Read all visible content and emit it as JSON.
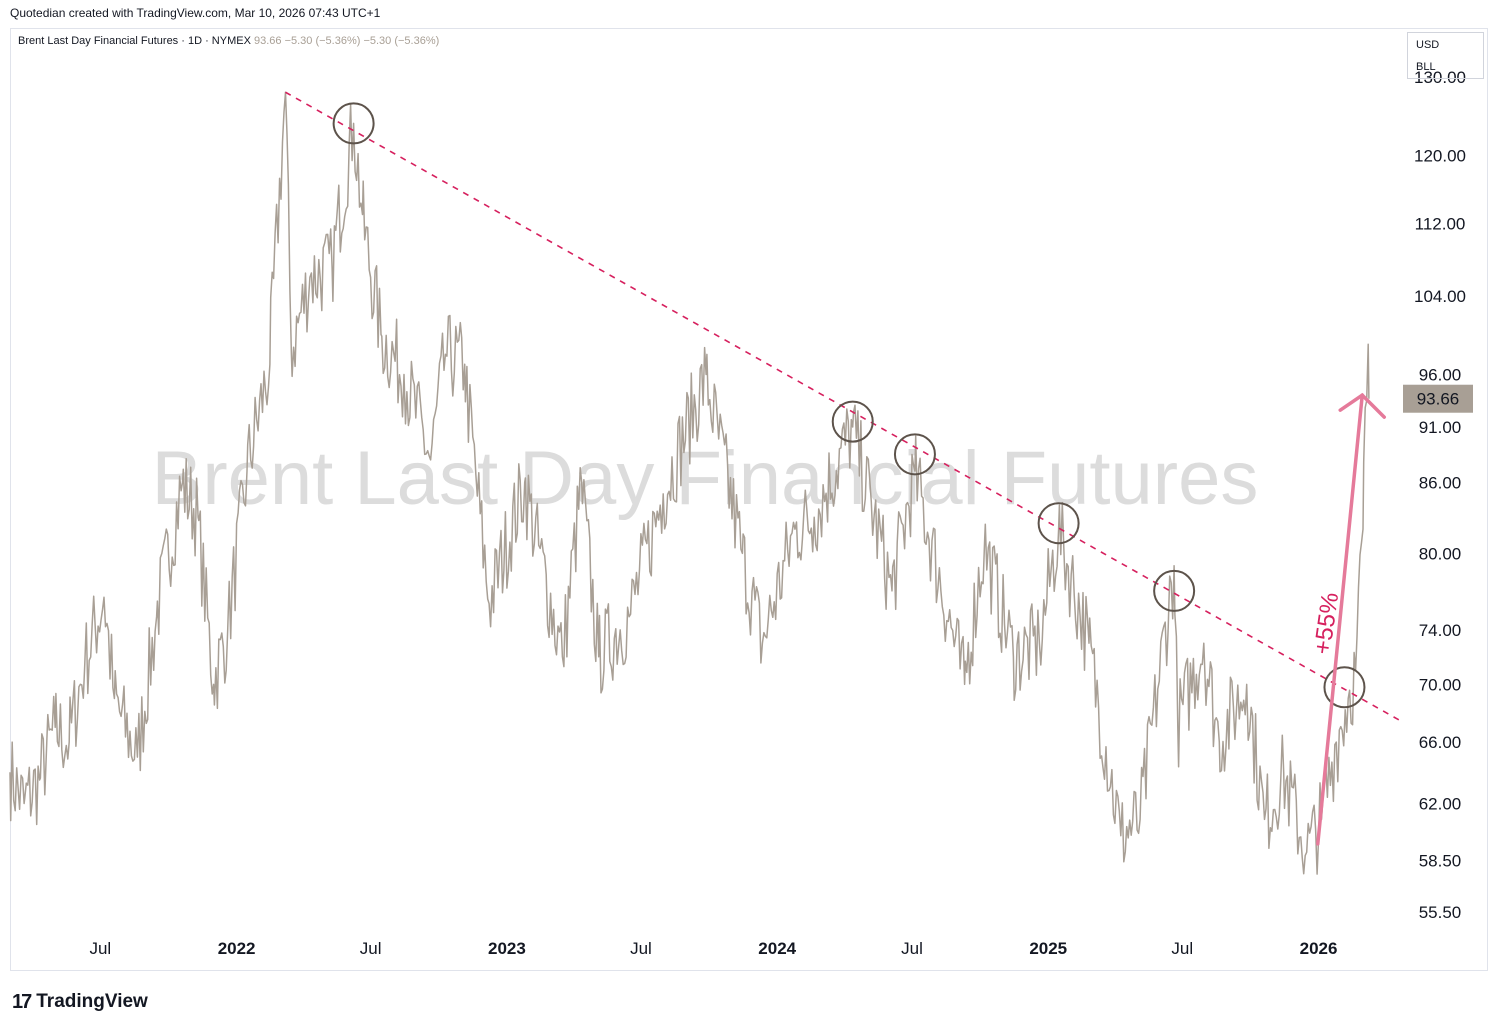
{
  "header": {
    "caption": "Quotedian created with TradingView.com, Mar 10, 2026 07:43 UTC+1"
  },
  "symbol": {
    "name": "Brent Last Day Financial Futures · 1D · NYMEX",
    "quote": "93.66 −5.30 (−5.36%) −5.30 (−5.36%)"
  },
  "units": {
    "currency": "USD",
    "unit": "BLL"
  },
  "watermark": "Brent Last Day Financial Futures",
  "footer": {
    "logo_mark": "17",
    "logo_text": "TradingView"
  },
  "colors": {
    "price_line": "#a89f95",
    "trendline": "#d6205e",
    "arrow": "#e57a9a",
    "circle": "#5d534b",
    "last_price_bg": "#a89f95"
  },
  "chart_data": {
    "type": "line",
    "scale": "log",
    "x_ticks": [
      "Jul",
      "2022",
      "Jul",
      "2023",
      "Jul",
      "2024",
      "Jul",
      "2025",
      "Jul",
      "2026"
    ],
    "y_ticks": [
      "130.00",
      "120.00",
      "112.00",
      "104.00",
      "96.00",
      "91.00",
      "86.00",
      "80.00",
      "74.00",
      "70.00",
      "66.00",
      "62.00",
      "58.50",
      "55.50"
    ],
    "ylim": [
      54.5,
      135
    ],
    "last_price": "93.66",
    "series": [
      {
        "values": [
          [
            "2021-03-01",
            64
          ],
          [
            "2021-03-20",
            62
          ],
          [
            "2021-04-10",
            63.5
          ],
          [
            "2021-05-01",
            67
          ],
          [
            "2021-05-20",
            66
          ],
          [
            "2021-06-10",
            71.5
          ],
          [
            "2021-07-06",
            76.5
          ],
          [
            "2021-07-20",
            69
          ],
          [
            "2021-08-20",
            65
          ],
          [
            "2021-09-15",
            75
          ],
          [
            "2021-10-20",
            86
          ],
          [
            "2021-11-10",
            83
          ],
          [
            "2021-12-01",
            70
          ],
          [
            "2021-12-20",
            74
          ],
          [
            "2022-01-15",
            87
          ],
          [
            "2022-02-15",
            97
          ],
          [
            "2022-03-08",
            128
          ],
          [
            "2022-03-16",
            98
          ],
          [
            "2022-04-10",
            106
          ],
          [
            "2022-05-10",
            107
          ],
          [
            "2022-06-08",
            124
          ],
          [
            "2022-06-20",
            113
          ],
          [
            "2022-07-15",
            100
          ],
          [
            "2022-08-15",
            96
          ],
          [
            "2022-09-20",
            88
          ],
          [
            "2022-10-10",
            98
          ],
          [
            "2022-11-05",
            97
          ],
          [
            "2022-12-08",
            76
          ],
          [
            "2023-01-25",
            86
          ],
          [
            "2023-03-17",
            72
          ],
          [
            "2023-04-12",
            86
          ],
          [
            "2023-05-05",
            72
          ],
          [
            "2023-06-15",
            75
          ],
          [
            "2023-07-31",
            85
          ],
          [
            "2023-09-27",
            96
          ],
          [
            "2023-11-15",
            80
          ],
          [
            "2023-12-12",
            73
          ],
          [
            "2024-01-25",
            82
          ],
          [
            "2024-02-20",
            83
          ],
          [
            "2024-04-12",
            91
          ],
          [
            "2024-06-04",
            77
          ],
          [
            "2024-07-05",
            87
          ],
          [
            "2024-09-10",
            70
          ],
          [
            "2024-10-07",
            81
          ],
          [
            "2024-11-15",
            72
          ],
          [
            "2024-12-20",
            73
          ],
          [
            "2025-01-15",
            82
          ],
          [
            "2025-02-25",
            73
          ],
          [
            "2025-04-09",
            60
          ],
          [
            "2025-05-05",
            61
          ],
          [
            "2025-06-20",
            79
          ],
          [
            "2025-06-25",
            67
          ],
          [
            "2025-07-30",
            73
          ],
          [
            "2025-08-20",
            66
          ],
          [
            "2025-09-26",
            70
          ],
          [
            "2025-10-20",
            61
          ],
          [
            "2025-11-15",
            64
          ],
          [
            "2025-12-16",
            59
          ],
          [
            "2026-01-05",
            61
          ],
          [
            "2026-01-25",
            66
          ],
          [
            "2026-02-10",
            69
          ],
          [
            "2026-02-20",
            71
          ],
          [
            "2026-03-02",
            82
          ],
          [
            "2026-03-09",
            99
          ],
          [
            "2026-03-10",
            93.66
          ]
        ]
      }
    ],
    "trendline": {
      "from": [
        "2022-03-08",
        128
      ],
      "to": [
        "2026-04-20",
        67.5
      ]
    },
    "highlights": [
      [
        "2022-06-08",
        124
      ],
      [
        "2024-04-12",
        91.5
      ],
      [
        "2024-07-05",
        88.5
      ],
      [
        "2025-01-15",
        82.5
      ],
      [
        "2025-06-20",
        77
      ],
      [
        "2026-02-05",
        69.8
      ]
    ],
    "arrow": {
      "from": [
        "2025-12-31",
        59.5
      ],
      "to": [
        "2026-03-01",
        94
      ],
      "label": "+55%"
    }
  }
}
